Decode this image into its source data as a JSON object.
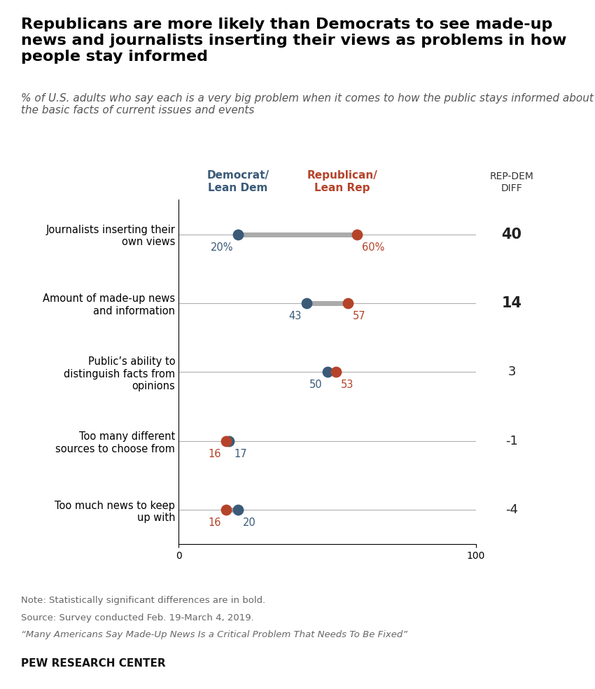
{
  "chart_data": {
    "type": "dumbbell",
    "title": "Republicans are more likely than Democrats to see made-up news and journalists inserting their views as problems in how people stay informed",
    "subtitle": "% of U.S. adults who say each is a very big problem when it comes to how the public stays informed about the basic facts of current issues and events",
    "categories": [
      "Journalists inserting their\nown views",
      "Amount of made-up news\nand information",
      "Public’s ability to\ndistinguish facts from\nopinions",
      "Too many different\nsources to choose from",
      "Too much news to keep\nup with"
    ],
    "series": [
      {
        "name": "Democrat/\nLean Dem",
        "color": "#3a5a78",
        "values": [
          20,
          43,
          50,
          17,
          20
        ],
        "value_labels": [
          "20%",
          "43",
          "50",
          "17",
          "20"
        ]
      },
      {
        "name": "Republican/\nLean Rep",
        "color": "#b5432a",
        "values": [
          60,
          57,
          53,
          16,
          16
        ],
        "value_labels": [
          "60%",
          "57",
          "53",
          "16",
          "16"
        ]
      }
    ],
    "color": "#aaaaaa",
    "data_labels": true,
    "grid": true,
    "xlim": [
      0,
      100
    ],
    "xticks": [
      0,
      100
    ],
    "diff_label": "REP-DEM\nDIFF",
    "diffs": [
      40,
      14,
      3,
      -1,
      -4
    ],
    "significant": [
      true,
      true,
      false,
      false,
      false
    ],
    "notes": [
      "Note: Statistically significant differences are in bold.",
      "Source: Survey conducted Feb. 19-March 4, 2019.",
      "“Many Americans Say Made-Up News Is a Critical Problem That Needs To Be Fixed”",
      "PEW RESEARCH CENTER"
    ]
  }
}
